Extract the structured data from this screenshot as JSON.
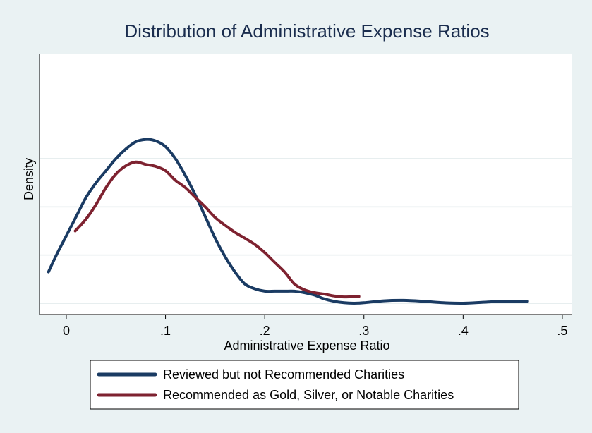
{
  "chart_data": {
    "type": "line",
    "title": "Distribution of Administrative Expense Ratios",
    "xlabel": "Administrative Expense Ratio",
    "ylabel": "Density",
    "xlim": [
      -0.027,
      0.51
    ],
    "ylim": [
      0,
      4.6
    ],
    "x_ticks": [
      {
        "value": 0,
        "label": "0"
      },
      {
        "value": 0.1,
        "label": ".1"
      },
      {
        "value": 0.2,
        "label": ".2"
      },
      {
        "value": 0.3,
        "label": ".3"
      },
      {
        "value": 0.4,
        "label": ".4"
      },
      {
        "value": 0.5,
        "label": ".5"
      }
    ],
    "y_gridlines": [
      1,
      2,
      3
    ],
    "grid": "horizontal",
    "legend_position": "bottom",
    "series": [
      {
        "name": "Reviewed but not Recommended Charities",
        "color": "#1a3b63",
        "x": [
          -0.018,
          -0.01,
          0,
          0.01,
          0.02,
          0.03,
          0.04,
          0.05,
          0.06,
          0.07,
          0.08,
          0.09,
          0.1,
          0.11,
          0.12,
          0.13,
          0.14,
          0.15,
          0.16,
          0.17,
          0.18,
          0.19,
          0.2,
          0.21,
          0.22,
          0.23,
          0.24,
          0.25,
          0.26,
          0.27,
          0.28,
          0.29,
          0.3,
          0.32,
          0.34,
          0.36,
          0.38,
          0.4,
          0.42,
          0.44,
          0.465
        ],
        "values": [
          0.65,
          1.0,
          1.4,
          1.8,
          2.2,
          2.5,
          2.75,
          3.0,
          3.2,
          3.35,
          3.4,
          3.37,
          3.25,
          3.0,
          2.65,
          2.25,
          1.8,
          1.35,
          0.97,
          0.65,
          0.4,
          0.3,
          0.25,
          0.25,
          0.25,
          0.25,
          0.22,
          0.17,
          0.09,
          0.04,
          0.01,
          0.0,
          0.01,
          0.05,
          0.06,
          0.04,
          0.01,
          0.0,
          0.02,
          0.04,
          0.04
        ]
      },
      {
        "name": "Recommended as Gold, Silver, or Notable Charities",
        "color": "#7e2230",
        "x": [
          0.009,
          0.02,
          0.03,
          0.04,
          0.05,
          0.06,
          0.07,
          0.08,
          0.09,
          0.1,
          0.11,
          0.12,
          0.13,
          0.14,
          0.15,
          0.16,
          0.17,
          0.18,
          0.19,
          0.2,
          0.21,
          0.22,
          0.23,
          0.24,
          0.25,
          0.26,
          0.27,
          0.28,
          0.295
        ],
        "values": [
          1.5,
          1.75,
          2.05,
          2.4,
          2.68,
          2.85,
          2.93,
          2.88,
          2.84,
          2.75,
          2.55,
          2.4,
          2.2,
          2.0,
          1.78,
          1.62,
          1.47,
          1.35,
          1.22,
          1.05,
          0.85,
          0.65,
          0.4,
          0.28,
          0.22,
          0.19,
          0.15,
          0.13,
          0.14
        ]
      }
    ]
  }
}
